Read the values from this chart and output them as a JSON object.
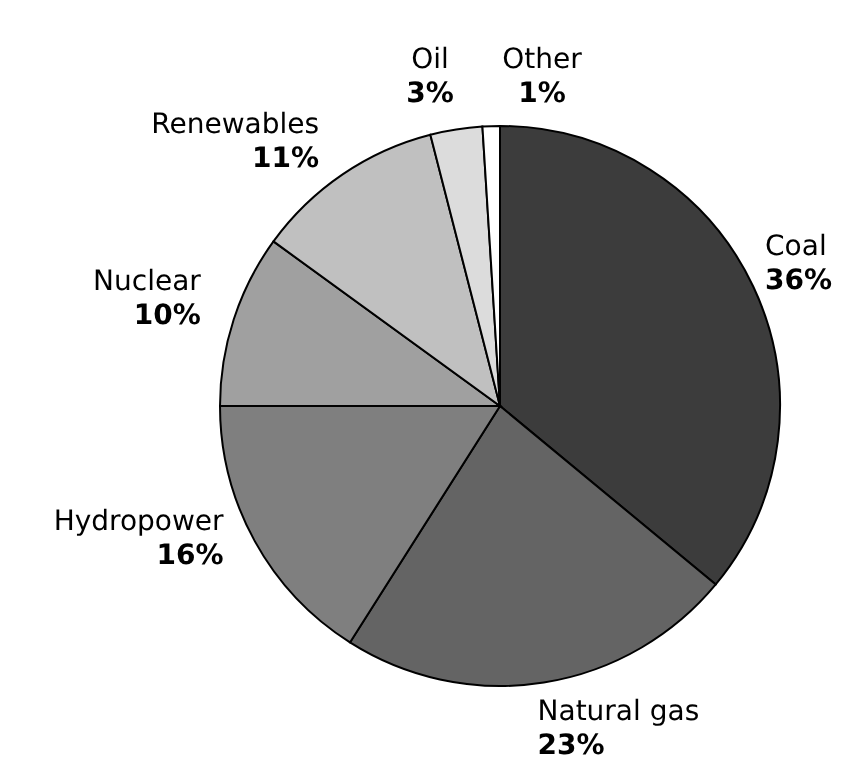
{
  "chart_data": {
    "type": "pie",
    "categories": [
      "Coal",
      "Natural gas",
      "Hydropower",
      "Nuclear",
      "Renewables",
      "Oil",
      "Other"
    ],
    "values": [
      36,
      23,
      16,
      10,
      11,
      3,
      1
    ],
    "value_labels": [
      "36%",
      "23%",
      "16%",
      "10%",
      "11%",
      "3%",
      "1%"
    ],
    "colors": [
      "#3c3c3c",
      "#646464",
      "#7f7f7f",
      "#a0a0a0",
      "#c0c0c0",
      "#dcdcdc",
      "#ffffff"
    ]
  }
}
